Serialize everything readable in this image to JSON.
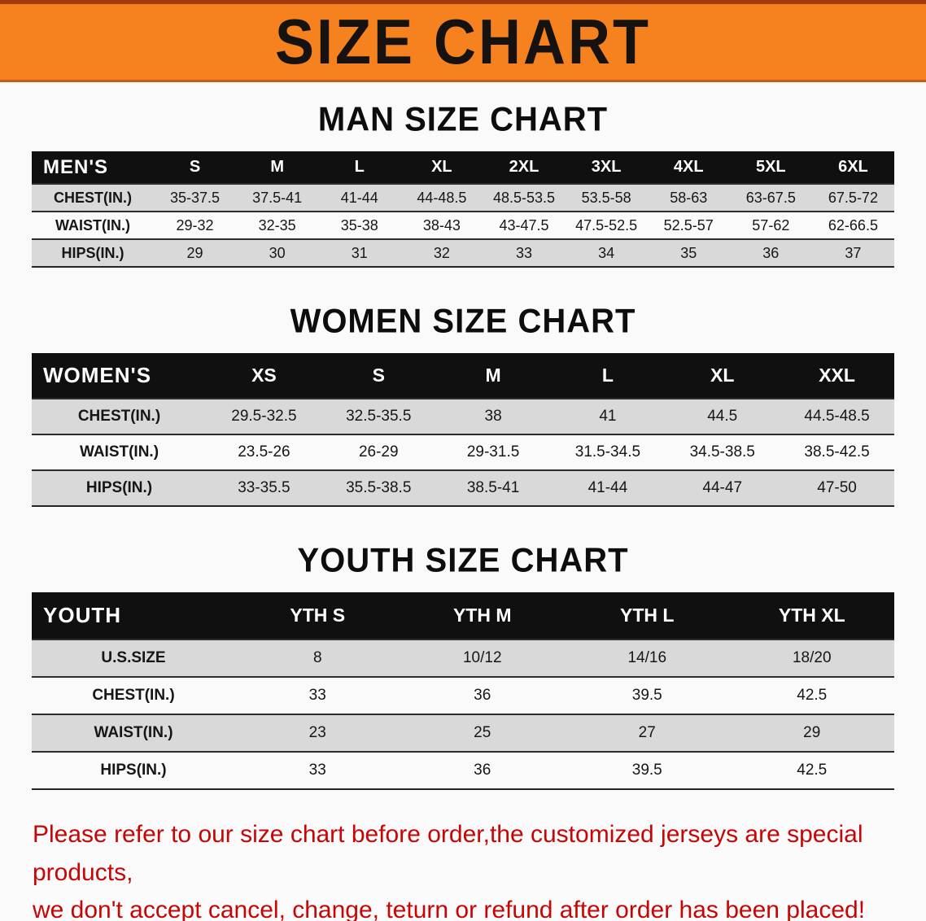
{
  "banner": {
    "title": "SIZE CHART",
    "bg_color": "#F6821F",
    "title_color": "#151210"
  },
  "sections": [
    {
      "id": "men",
      "heading": "MAN SIZE CHART",
      "corner_label": "MEN'S",
      "columns": [
        "S",
        "M",
        "L",
        "XL",
        "2XL",
        "3XL",
        "4XL",
        "5XL",
        "6XL"
      ],
      "rows": [
        {
          "label": "CHEST(IN.)",
          "values": [
            "35-37.5",
            "37.5-41",
            "41-44",
            "44-48.5",
            "48.5-53.5",
            "53.5-58",
            "58-63",
            "63-67.5",
            "67.5-72"
          ]
        },
        {
          "label": "WAIST(IN.)",
          "values": [
            "29-32",
            "32-35",
            "35-38",
            "38-43",
            "43-47.5",
            "47.5-52.5",
            "52.5-57",
            "57-62",
            "62-66.5"
          ]
        },
        {
          "label": "HIPS(IN.)",
          "values": [
            "29",
            "30",
            "31",
            "32",
            "33",
            "34",
            "35",
            "36",
            "37"
          ]
        }
      ]
    },
    {
      "id": "women",
      "heading": "WOMEN SIZE CHART",
      "corner_label": "WOMEN'S",
      "columns": [
        "XS",
        "S",
        "M",
        "L",
        "XL",
        "XXL"
      ],
      "rows": [
        {
          "label": "CHEST(IN.)",
          "values": [
            "29.5-32.5",
            "32.5-35.5",
            "38",
            "41",
            "44.5",
            "44.5-48.5"
          ]
        },
        {
          "label": "WAIST(IN.)",
          "values": [
            "23.5-26",
            "26-29",
            "29-31.5",
            "31.5-34.5",
            "34.5-38.5",
            "38.5-42.5"
          ]
        },
        {
          "label": "HIPS(IN.)",
          "values": [
            "33-35.5",
            "35.5-38.5",
            "38.5-41",
            "41-44",
            "44-47",
            "47-50"
          ]
        }
      ]
    },
    {
      "id": "youth",
      "heading": "YOUTH SIZE CHART",
      "corner_label": "YOUTH",
      "columns": [
        "YTH S",
        "YTH M",
        "YTH L",
        "YTH XL"
      ],
      "rows": [
        {
          "label": "U.S.SIZE",
          "values": [
            "8",
            "10/12",
            "14/16",
            "18/20"
          ]
        },
        {
          "label": "CHEST(IN.)",
          "values": [
            "33",
            "36",
            "39.5",
            "42.5"
          ]
        },
        {
          "label": "WAIST(IN.)",
          "values": [
            "23",
            "25",
            "27",
            "29"
          ]
        },
        {
          "label": "HIPS(IN.)",
          "values": [
            "33",
            "36",
            "39.5",
            "42.5"
          ]
        }
      ]
    }
  ],
  "footer": {
    "line1": "Please refer to our size chart before order,the customized jerseys are special products,",
    "line2": "we don't accept cancel, change, teturn or refund after order has been placed!"
  }
}
